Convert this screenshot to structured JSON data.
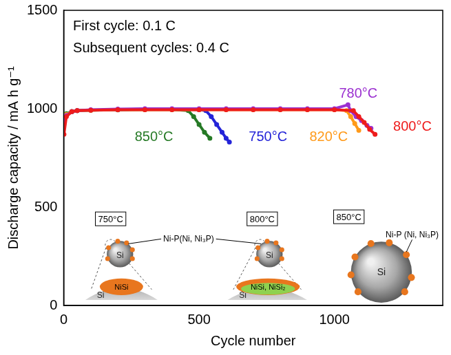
{
  "chart_data": {
    "type": "scatter",
    "x_label": "Cycle number",
    "y_label": "Discharge capacity / mA h g⁻¹",
    "xlim": [
      0,
      1400
    ],
    "xticks": [
      0,
      500,
      1000
    ],
    "ylim": [
      0,
      1500
    ],
    "yticks": [
      0,
      500,
      1000,
      1500
    ],
    "grid": false,
    "marker": "circle",
    "line_style": "solid",
    "annotations": [
      "First cycle: 0.1 C",
      "Subsequent cycles: 0.4 C"
    ],
    "series": [
      {
        "name": "800°C",
        "color": "#ee1c1c",
        "x": [
          1,
          10,
          30,
          50,
          100,
          200,
          300,
          400,
          500,
          600,
          700,
          800,
          900,
          1000,
          1070,
          1090,
          1110,
          1130,
          1150
        ],
        "values": [
          870,
          960,
          985,
          990,
          992,
          995,
          995,
          995,
          995,
          995,
          995,
          995,
          995,
          995,
          990,
          960,
          930,
          895,
          870
        ]
      },
      {
        "name": "780°C",
        "color": "#9b30d0",
        "x": [
          1,
          10,
          30,
          50,
          100,
          200,
          300,
          400,
          500,
          600,
          700,
          800,
          900,
          1000,
          1050,
          1060,
          1080,
          1100,
          1120,
          1135
        ],
        "values": [
          930,
          965,
          985,
          990,
          995,
          998,
          1000,
          1000,
          1000,
          1000,
          1000,
          1000,
          1000,
          1000,
          1020,
          990,
          960,
          940,
          915,
          900
        ]
      },
      {
        "name": "820°C",
        "color": "#ff9a1a",
        "x": [
          1,
          10,
          30,
          50,
          100,
          200,
          300,
          400,
          500,
          600,
          700,
          800,
          900,
          1000,
          1045,
          1060,
          1075,
          1090
        ],
        "values": [
          950,
          970,
          985,
          990,
          992,
          995,
          995,
          995,
          995,
          995,
          995,
          995,
          995,
          995,
          990,
          960,
          925,
          890
        ]
      },
      {
        "name": "750°C",
        "color": "#2424d8",
        "x": [
          1,
          10,
          30,
          50,
          100,
          200,
          300,
          400,
          500,
          525,
          545,
          565,
          585,
          600,
          612
        ],
        "values": [
          940,
          965,
          985,
          990,
          993,
          995,
          998,
          998,
          995,
          990,
          960,
          920,
          880,
          850,
          830
        ]
      },
      {
        "name": "850°C",
        "color": "#267a26",
        "x": [
          1,
          10,
          30,
          50,
          100,
          200,
          300,
          400,
          460,
          480,
          500,
          520,
          540
        ],
        "values": [
          960,
          975,
          985,
          990,
          992,
          994,
          996,
          996,
          990,
          960,
          920,
          880,
          850
        ]
      }
    ],
    "inset": {
      "panels": [
        {
          "title": "750°C",
          "particle": "Si",
          "interface": "NiSi",
          "substrate": "Si"
        },
        {
          "title": "800°C",
          "particle": "Si",
          "interface": "NiSi, NiSi₂",
          "substrate": "Si"
        },
        {
          "title": "850°C",
          "particle": "Si"
        }
      ],
      "coating_labels": [
        "Ni-P(Ni, Ni₃P)",
        "Ni-P (Ni, Ni₃P)"
      ]
    }
  }
}
